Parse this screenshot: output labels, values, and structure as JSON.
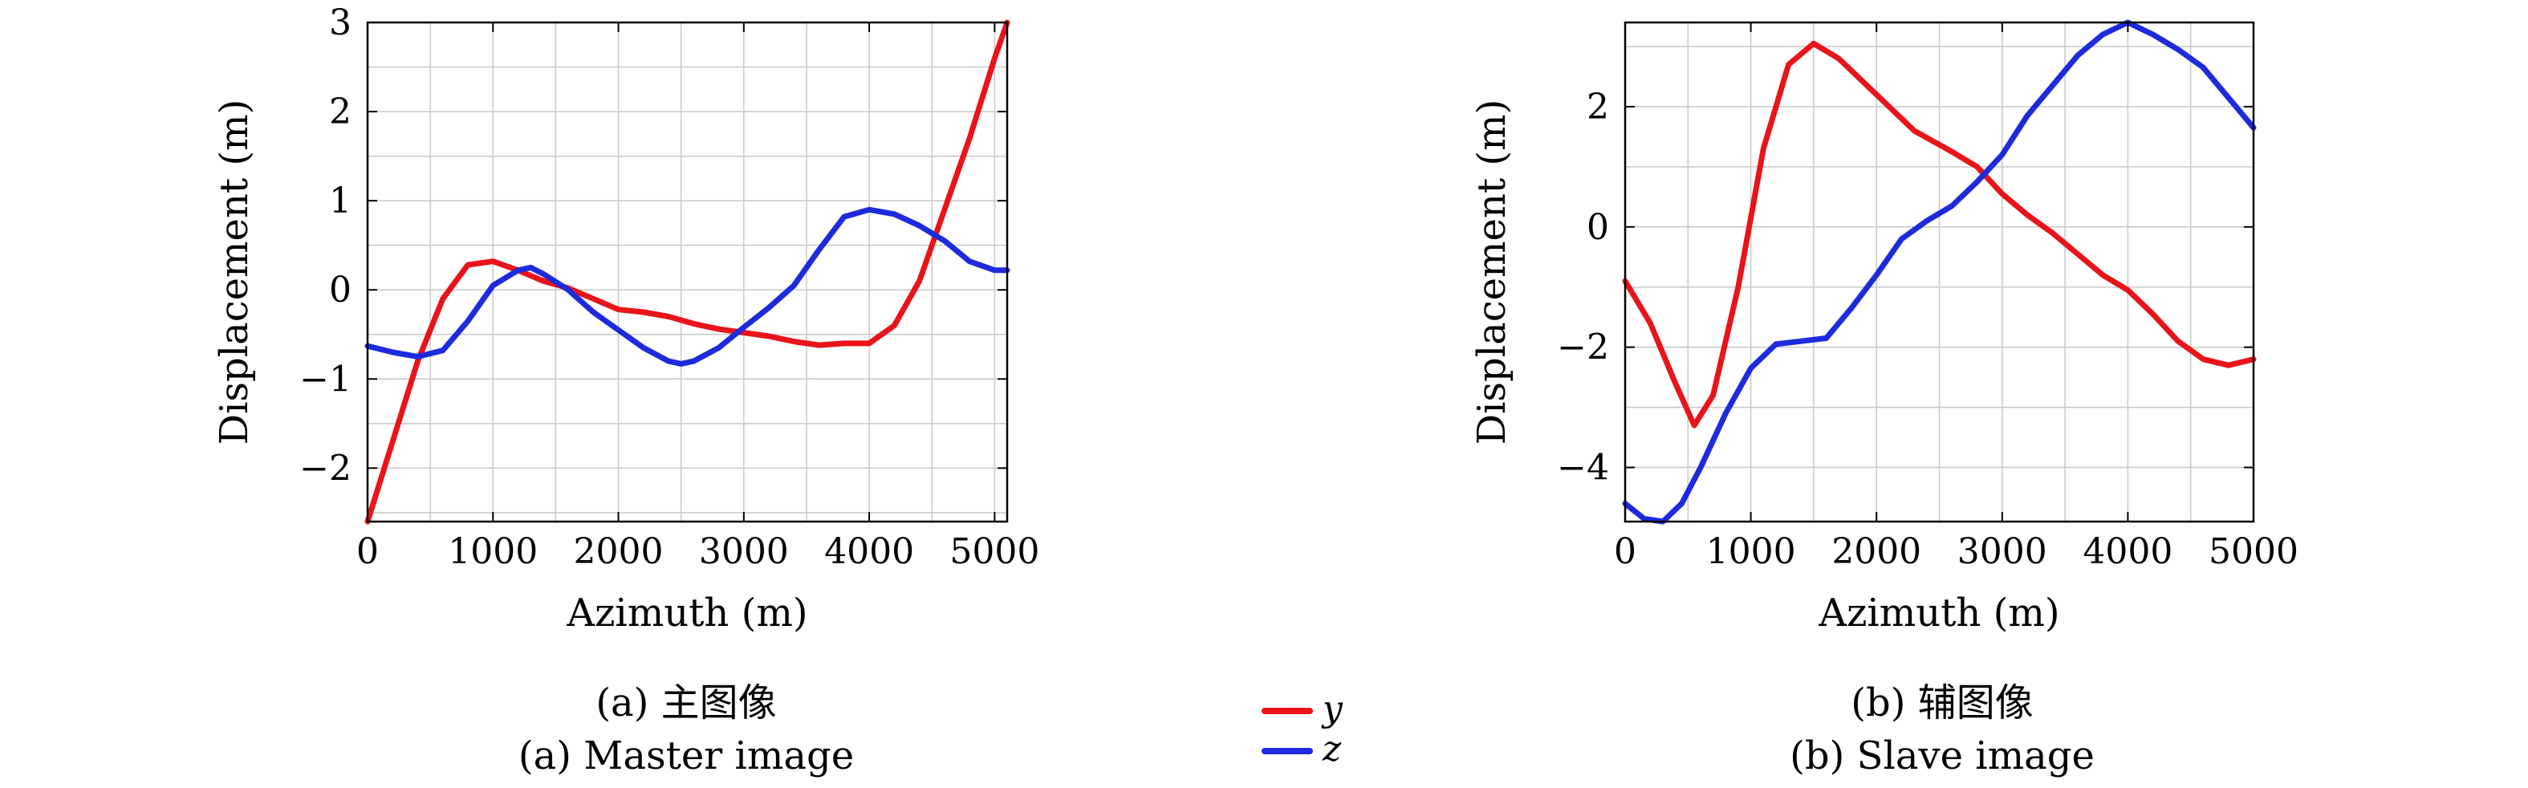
{
  "chart_data": [
    {
      "type": "line",
      "caption_cn": "(a) 主图像",
      "caption_en": "(a) Master image",
      "xlabel": "Azimuth (m)",
      "ylabel": "Displacement (m)",
      "xlim": [
        0,
        5100
      ],
      "ylim": [
        -2.6,
        3.0
      ],
      "xticks": [
        0,
        1000,
        2000,
        3000,
        4000,
        5000
      ],
      "yticks": [
        -2,
        -1,
        0,
        1,
        2,
        3
      ],
      "grid": true,
      "series": [
        {
          "name": "y",
          "color": "#e8141a",
          "x": [
            0,
            200,
            400,
            600,
            800,
            1000,
            1200,
            1400,
            1600,
            1800,
            2000,
            2200,
            2400,
            2600,
            2800,
            3000,
            3200,
            3400,
            3600,
            3800,
            4000,
            4200,
            4400,
            4600,
            4800,
            5000,
            5100
          ],
          "y": [
            -2.6,
            -1.7,
            -0.8,
            -0.1,
            0.28,
            0.32,
            0.22,
            0.1,
            0.02,
            -0.1,
            -0.22,
            -0.25,
            -0.3,
            -0.38,
            -0.44,
            -0.48,
            -0.52,
            -0.58,
            -0.62,
            -0.6,
            -0.6,
            -0.4,
            0.1,
            0.9,
            1.7,
            2.6,
            3.0
          ]
        },
        {
          "name": "z",
          "color": "#1e2bdc",
          "x": [
            0,
            200,
            400,
            600,
            800,
            1000,
            1200,
            1300,
            1400,
            1600,
            1800,
            2000,
            2200,
            2400,
            2500,
            2600,
            2800,
            3000,
            3200,
            3400,
            3600,
            3800,
            4000,
            4200,
            4400,
            4600,
            4800,
            5000,
            5100
          ],
          "y": [
            -0.63,
            -0.7,
            -0.75,
            -0.68,
            -0.35,
            0.05,
            0.22,
            0.25,
            0.18,
            0.0,
            -0.25,
            -0.45,
            -0.65,
            -0.8,
            -0.83,
            -0.8,
            -0.65,
            -0.42,
            -0.2,
            0.05,
            0.45,
            0.82,
            0.9,
            0.85,
            0.72,
            0.55,
            0.32,
            0.22,
            0.22
          ]
        }
      ]
    },
    {
      "type": "line",
      "caption_cn": "(b) 辅图像",
      "caption_en": "(b) Slave image",
      "xlabel": "Azimuth (m)",
      "ylabel": "Displacement (m)",
      "xlim": [
        0,
        5000
      ],
      "ylim": [
        -4.9,
        3.4
      ],
      "xticks": [
        0,
        1000,
        2000,
        3000,
        4000,
        5000
      ],
      "yticks": [
        -4,
        -2,
        0,
        2
      ],
      "grid": true,
      "series": [
        {
          "name": "y",
          "color": "#e8141a",
          "x": [
            0,
            200,
            400,
            550,
            700,
            900,
            1100,
            1300,
            1500,
            1700,
            2000,
            2300,
            2600,
            2800,
            3000,
            3200,
            3400,
            3600,
            3800,
            4000,
            4200,
            4400,
            4600,
            4800,
            5000
          ],
          "y": [
            -0.9,
            -1.6,
            -2.6,
            -3.3,
            -2.8,
            -1.0,
            1.3,
            2.7,
            3.05,
            2.8,
            2.2,
            1.6,
            1.25,
            1.0,
            0.55,
            0.2,
            -0.1,
            -0.45,
            -0.8,
            -1.05,
            -1.45,
            -1.9,
            -2.2,
            -2.3,
            -2.2
          ]
        },
        {
          "name": "z",
          "color": "#1e2bdc",
          "x": [
            0,
            150,
            300,
            450,
            600,
            800,
            1000,
            1200,
            1400,
            1600,
            1800,
            2000,
            2200,
            2400,
            2600,
            2800,
            3000,
            3200,
            3400,
            3600,
            3800,
            4000,
            4200,
            4400,
            4600,
            4800,
            5000
          ],
          "y": [
            -4.6,
            -4.85,
            -4.9,
            -4.6,
            -4.0,
            -3.1,
            -2.35,
            -1.95,
            -1.9,
            -1.85,
            -1.35,
            -0.8,
            -0.2,
            0.1,
            0.35,
            0.75,
            1.2,
            1.85,
            2.35,
            2.85,
            3.2,
            3.4,
            3.2,
            2.95,
            2.65,
            2.15,
            1.65
          ]
        }
      ]
    }
  ],
  "legend": {
    "entries": [
      {
        "label": "y",
        "color": "#e8141a"
      },
      {
        "label": "z",
        "color": "#1e2bdc"
      }
    ]
  }
}
